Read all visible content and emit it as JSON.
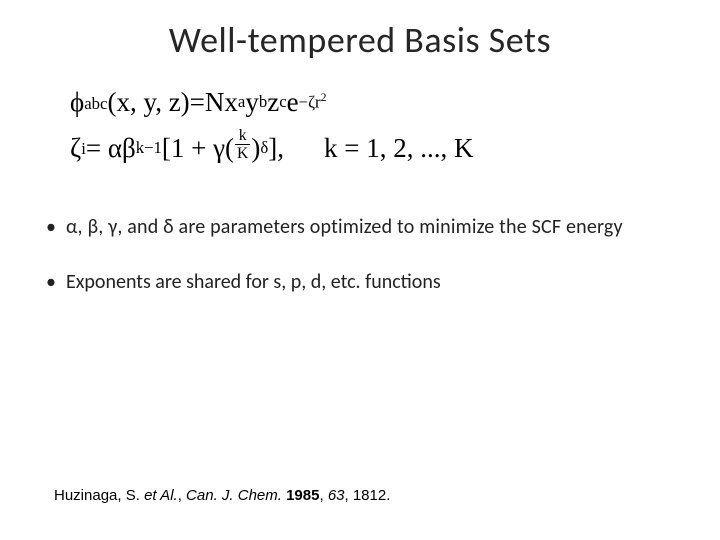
{
  "title": "Well-tempered Basis Sets",
  "equations": {
    "line1": {
      "func": "ϕ",
      "func_sub": "abc",
      "args": "(x, y, z)",
      "equals": " = ",
      "N": "Nx",
      "a": "a",
      "y": "y",
      "b": "b",
      "z": "z",
      "c": "c",
      "e": "e",
      "exp_neg": "−ζr",
      "exp_sq": "2"
    },
    "line2": {
      "zeta": "ζ",
      "i": "i",
      "equals": " = αβ",
      "k_minus_1": "k−1",
      "bracket_open": "[1 + γ(",
      "frac_num": "k",
      "frac_den": "K",
      "close_paren": ")",
      "delta": "δ",
      "bracket_close": "],",
      "k_range": "k = 1, 2, ..., K"
    }
  },
  "bullets": [
    "α, β, γ, and δ are parameters optimized to minimize the SCF energy",
    "Exponents are shared for s, p, d, etc. functions"
  ],
  "citation": {
    "author": "Huzinaga, S. ",
    "etal": "et Al.",
    "sep1": ", ",
    "journal": "Can. J. Chem.",
    "sep2": " ",
    "year": "1985",
    "sep3": ", ",
    "volume": "63",
    "sep4": ", 1812."
  }
}
